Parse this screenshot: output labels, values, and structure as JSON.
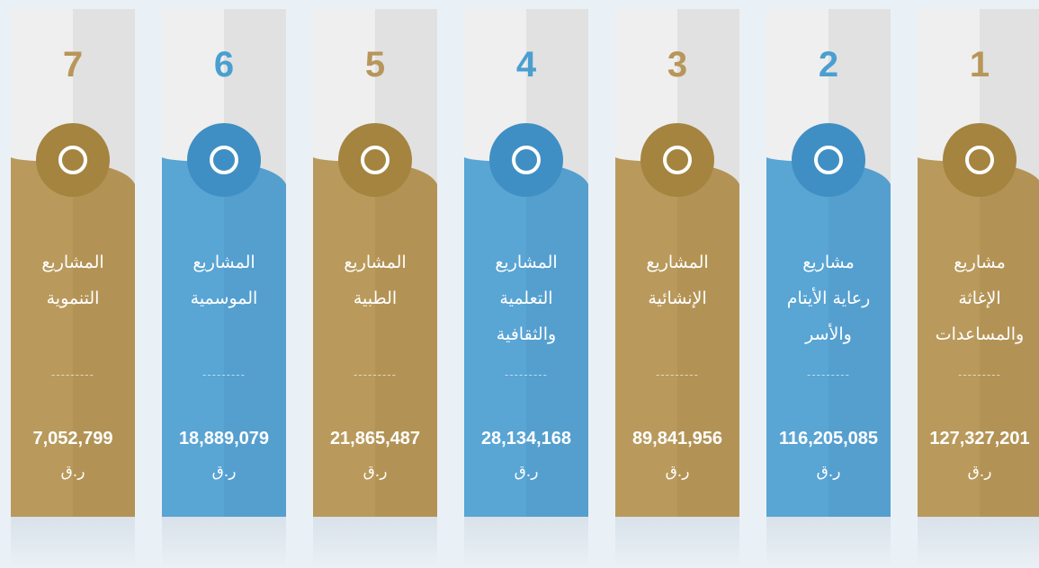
{
  "items": [
    {
      "number": "1",
      "title": [
        "مشاريع",
        "الإغاثة",
        "والمساعدات"
      ],
      "amount": "127,327,201",
      "theme": "gold"
    },
    {
      "number": "2",
      "title": [
        "مشاريع",
        "رعاية الأيتام",
        "والأسر"
      ],
      "amount": "116,205,085",
      "theme": "blue"
    },
    {
      "number": "3",
      "title": [
        "المشاريع",
        "الإنشائية"
      ],
      "amount": "89,841,956",
      "theme": "gold"
    },
    {
      "number": "4",
      "title": [
        "المشاريع",
        "التعلمية",
        "والثقافية"
      ],
      "amount": "28,134,168",
      "theme": "blue"
    },
    {
      "number": "5",
      "title": [
        "المشاريع",
        "الطبية"
      ],
      "amount": "21,865,487",
      "theme": "gold"
    },
    {
      "number": "6",
      "title": [
        "المشاريع",
        "الموسمية"
      ],
      "amount": "18,889,079",
      "theme": "blue"
    },
    {
      "number": "7",
      "title": [
        "المشاريع",
        "التنموية"
      ],
      "amount": "7,052,799",
      "theme": "gold"
    }
  ],
  "separator": "---------",
  "currency": "ر.ق"
}
